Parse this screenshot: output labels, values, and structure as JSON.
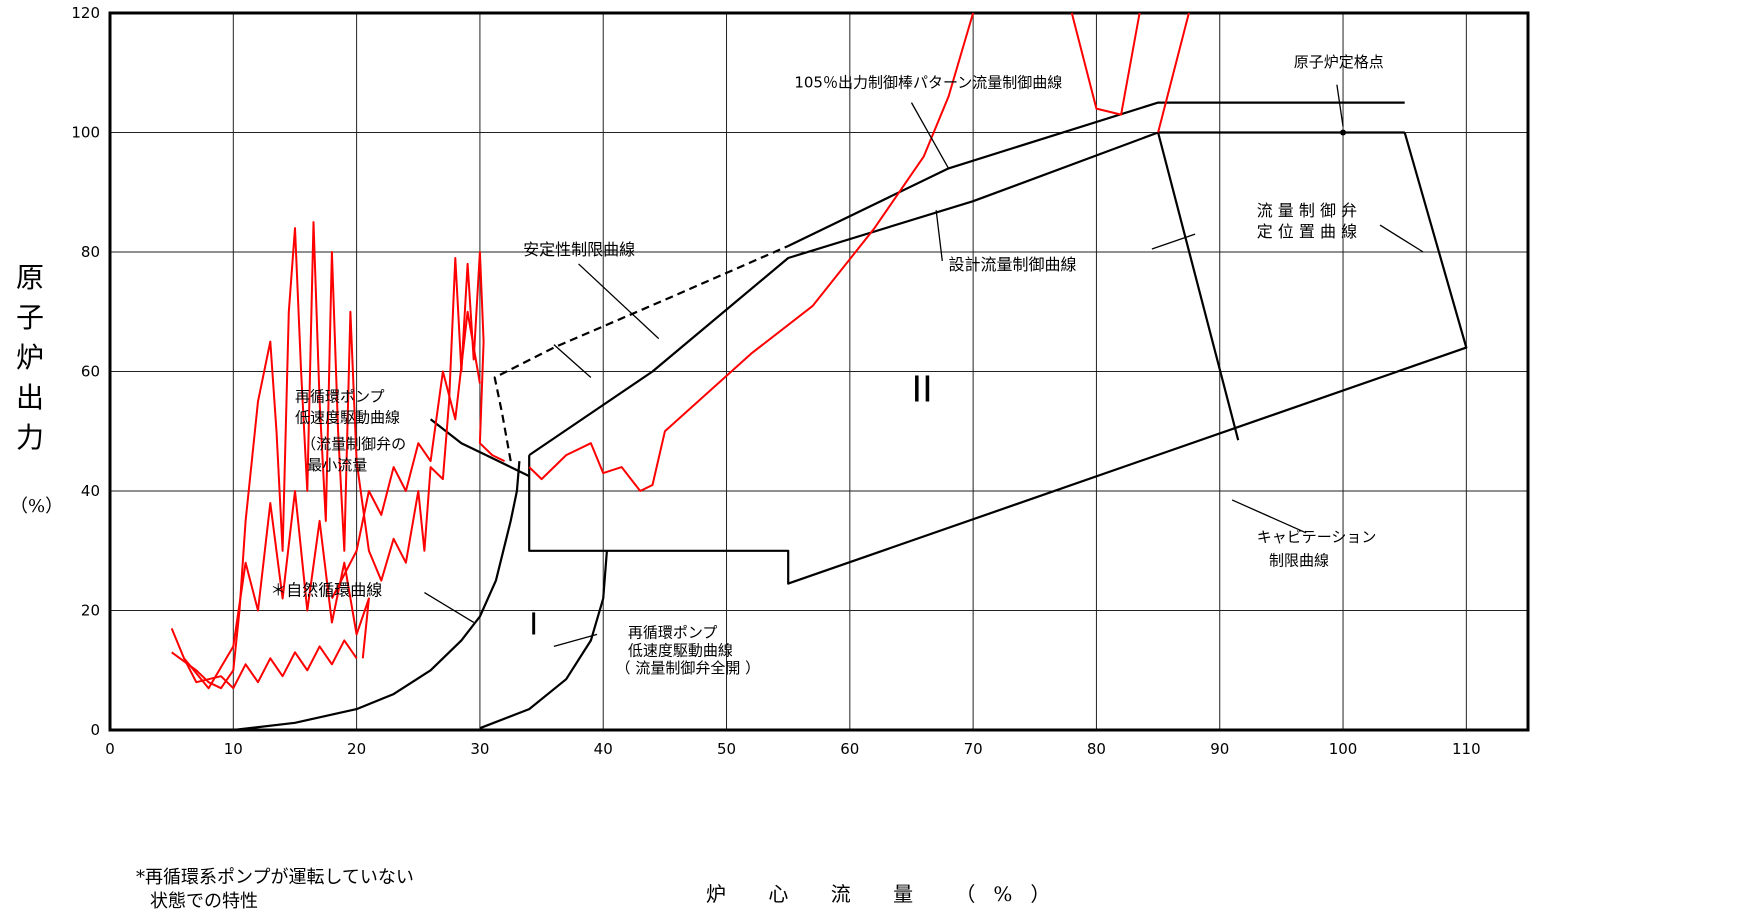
{
  "chart_data": {
    "type": "line",
    "xlabel": "炉 心 流 量 （%）",
    "ylabel": "原子炉出力",
    "ylabel_unit": "（%）",
    "xlim": [
      0,
      115
    ],
    "ylim": [
      0,
      120
    ],
    "xticks": [
      0,
      10,
      20,
      30,
      40,
      50,
      60,
      70,
      80,
      90,
      100,
      110
    ],
    "yticks": [
      0,
      20,
      40,
      60,
      80,
      100,
      120
    ],
    "grid": true,
    "footnote_line1": "*再循環系ポンプが運転していない",
    "footnote_line2": "状態での特性",
    "annotations": {
      "natural_circ": "＊自然循環曲線",
      "region1": "I",
      "region2": "II",
      "low_speed_full_open_1": "再循環ポンプ",
      "low_speed_full_open_2": "低速度駆動曲線",
      "low_speed_full_open_3": "（ 流量制御弁全開 ）",
      "low_speed_min_1": "再循環ポンプ",
      "low_speed_min_2": "低速度駆動曲線",
      "low_speed_min_3": "（流量制御弁の",
      "low_speed_min_4": "最小流量",
      "stability_limit": "安定性制限曲線",
      "rod_pattern_105": "105％出力制御棒パターン流量制御曲線",
      "design_flow_control": "設計流量制御曲線",
      "rated_point": "原子炉定格点",
      "valve_position_1": "流 量 制 御 弁",
      "valve_position_2": "定 位 置 曲 線",
      "cavitation_1": "キャビテーション",
      "cavitation_2": "制限曲線"
    },
    "series": [
      {
        "key": "natural_circulation",
        "color": "#000000",
        "points": [
          [
            10,
            0
          ],
          [
            15,
            1.2
          ],
          [
            20,
            3.5
          ],
          [
            23,
            6
          ],
          [
            26,
            10
          ],
          [
            28.5,
            15
          ],
          [
            30,
            19
          ],
          [
            31.3,
            25
          ],
          [
            32.5,
            35
          ],
          [
            33,
            40
          ],
          [
            33.2,
            45
          ]
        ]
      },
      {
        "key": "low_speed_full_open",
        "color": "#000000",
        "points": [
          [
            30,
            0.3
          ],
          [
            34,
            3.5
          ],
          [
            37,
            8.5
          ],
          [
            39,
            15
          ],
          [
            40,
            22
          ],
          [
            40.3,
            30
          ]
        ]
      },
      {
        "key": "stability_limit",
        "color": "#000000",
        "dashed": true,
        "points": [
          [
            32.5,
            45
          ],
          [
            31.8,
            53
          ],
          [
            31.2,
            59
          ],
          [
            36,
            64
          ],
          [
            45,
            72
          ],
          [
            55,
            81
          ]
        ]
      },
      {
        "key": "rod_pattern_105",
        "color": "#000000",
        "points": [
          [
            55,
            81
          ],
          [
            68,
            94
          ],
          [
            85,
            105
          ],
          [
            105,
            105
          ]
        ]
      },
      {
        "key": "design_flow_control",
        "color": "#000000",
        "points": [
          [
            34,
            46
          ],
          [
            44,
            60
          ],
          [
            55,
            79
          ],
          [
            70,
            88.5
          ],
          [
            85,
            100
          ],
          [
            105,
            100
          ]
        ]
      },
      {
        "key": "region_boundary",
        "color": "#000000",
        "points": [
          [
            34,
            46
          ],
          [
            34,
            30
          ],
          [
            55,
            30
          ],
          [
            55,
            24.5
          ],
          [
            110,
            64
          ],
          [
            105,
            100
          ]
        ]
      },
      {
        "key": "min_flow_low",
        "color": "#000000",
        "points": [
          [
            26,
            52
          ],
          [
            28.5,
            48
          ],
          [
            30.5,
            46
          ],
          [
            32.5,
            44
          ],
          [
            34,
            42.5
          ]
        ]
      },
      {
        "key": "valve_position",
        "color": "#000000",
        "points": [
          [
            85,
            100
          ],
          [
            91.5,
            48.5
          ]
        ]
      },
      {
        "key": "measured_upper",
        "color": "#ff0000",
        "points": [
          [
            34,
            44
          ],
          [
            35,
            42
          ],
          [
            37,
            46
          ],
          [
            39,
            48
          ],
          [
            40,
            43
          ],
          [
            41.5,
            44
          ],
          [
            43,
            40
          ],
          [
            44,
            41
          ],
          [
            45,
            50
          ],
          [
            52,
            63
          ],
          [
            57,
            71
          ],
          [
            62,
            84
          ],
          [
            66,
            96
          ],
          [
            68,
            106
          ],
          [
            70,
            120
          ]
        ]
      },
      {
        "key": "measured_spike1",
        "color": "#ff0000",
        "points": [
          [
            78,
            120
          ],
          [
            80,
            104
          ],
          [
            82,
            103
          ],
          [
            83.5,
            120
          ]
        ]
      },
      {
        "key": "measured_spike2",
        "color": "#ff0000",
        "points": [
          [
            85,
            100
          ],
          [
            86,
            108
          ],
          [
            87.5,
            120
          ]
        ]
      },
      {
        "key": "measured_trace_a",
        "color": "#ff0000",
        "points": [
          [
            5,
            13
          ],
          [
            7,
            10
          ],
          [
            8,
            8
          ],
          [
            9,
            7
          ],
          [
            10,
            10
          ],
          [
            10.5,
            20
          ],
          [
            11,
            35
          ],
          [
            12,
            55
          ],
          [
            13,
            65
          ],
          [
            13.5,
            50
          ],
          [
            14,
            30
          ],
          [
            14.5,
            70
          ],
          [
            15,
            84
          ],
          [
            15.5,
            60
          ],
          [
            16,
            40
          ],
          [
            16.5,
            85
          ],
          [
            17,
            55
          ],
          [
            17.5,
            35
          ],
          [
            18,
            80
          ],
          [
            18.5,
            50
          ],
          [
            19,
            30
          ],
          [
            19.5,
            70
          ],
          [
            20,
            45
          ],
          [
            21,
            30
          ],
          [
            22,
            25
          ],
          [
            23,
            32
          ],
          [
            24,
            28
          ],
          [
            25,
            40
          ],
          [
            25.5,
            30
          ],
          [
            26,
            44
          ],
          [
            27,
            42
          ],
          [
            27.5,
            55
          ],
          [
            28,
            79
          ],
          [
            28.5,
            60
          ],
          [
            29,
            78
          ],
          [
            29.5,
            62
          ],
          [
            30,
            80
          ],
          [
            30.3,
            65
          ],
          [
            30,
            48
          ],
          [
            31,
            46
          ],
          [
            32,
            45
          ]
        ]
      },
      {
        "key": "measured_trace_b",
        "color": "#ff0000",
        "points": [
          [
            5,
            17
          ],
          [
            6,
            12
          ],
          [
            8,
            7
          ],
          [
            10,
            14
          ],
          [
            11,
            28
          ],
          [
            12,
            20
          ],
          [
            13,
            38
          ],
          [
            14,
            22
          ],
          [
            15,
            40
          ],
          [
            16,
            20
          ],
          [
            17,
            35
          ],
          [
            18,
            18
          ],
          [
            19,
            28
          ],
          [
            20,
            16
          ],
          [
            21,
            22
          ],
          [
            20.5,
            12
          ]
        ]
      },
      {
        "key": "measured_trace_c",
        "color": "#ff0000",
        "points": [
          [
            6,
            12
          ],
          [
            7,
            8
          ],
          [
            9,
            9
          ],
          [
            10,
            7
          ],
          [
            11,
            11
          ],
          [
            12,
            8
          ],
          [
            13,
            12
          ],
          [
            14,
            9
          ],
          [
            15,
            13
          ],
          [
            16,
            10
          ],
          [
            17,
            14
          ],
          [
            18,
            11
          ],
          [
            19,
            15
          ],
          [
            20,
            12
          ]
        ]
      },
      {
        "key": "measured_trace_d",
        "color": "#ff0000",
        "points": [
          [
            18,
            22
          ],
          [
            20,
            30
          ],
          [
            21,
            40
          ],
          [
            22,
            36
          ],
          [
            23,
            44
          ],
          [
            24,
            40
          ],
          [
            25,
            48
          ],
          [
            26,
            45
          ],
          [
            27,
            60
          ],
          [
            28,
            52
          ],
          [
            29,
            70
          ],
          [
            30,
            58
          ]
        ]
      }
    ]
  }
}
